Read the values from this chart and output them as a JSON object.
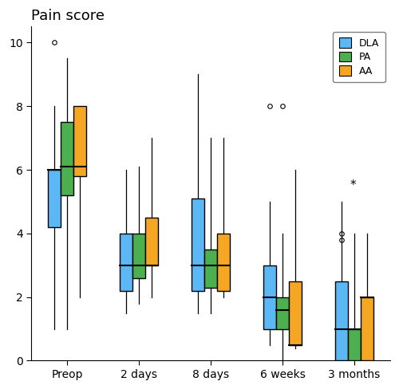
{
  "title": "Pain score",
  "ylim": [
    0,
    10.5
  ],
  "yticks": [
    0,
    2,
    4,
    6,
    8,
    10
  ],
  "groups": [
    "Preop",
    "2 days",
    "8 days",
    "6 weeks",
    "3 months"
  ],
  "series": [
    "DLA",
    "PA",
    "AA"
  ],
  "colors": {
    "DLA": "#5BB8F5",
    "PA": "#4CAF50",
    "AA": "#F5A623"
  },
  "box_width": 0.18,
  "box_data": {
    "Preop": {
      "DLA": {
        "whislo": 1.0,
        "q1": 4.2,
        "med": 6.0,
        "q3": 6.0,
        "whishi": 8.0,
        "fliers": [
          10.0
        ],
        "extreme": []
      },
      "PA": {
        "whislo": 1.0,
        "q1": 5.2,
        "med": 6.1,
        "q3": 7.5,
        "whishi": 9.5,
        "fliers": [],
        "extreme": []
      },
      "AA": {
        "whislo": 2.0,
        "q1": 5.8,
        "med": 6.1,
        "q3": 8.0,
        "whishi": 8.0,
        "fliers": [],
        "extreme": []
      }
    },
    "2 days": {
      "DLA": {
        "whislo": 1.5,
        "q1": 2.2,
        "med": 3.0,
        "q3": 4.0,
        "whishi": 6.0,
        "fliers": [],
        "extreme": []
      },
      "PA": {
        "whislo": 1.8,
        "q1": 2.6,
        "med": 3.0,
        "q3": 4.0,
        "whishi": 6.1,
        "fliers": [],
        "extreme": []
      },
      "AA": {
        "whislo": 2.0,
        "q1": 3.0,
        "med": 3.0,
        "q3": 4.5,
        "whishi": 7.0,
        "fliers": [],
        "extreme": []
      }
    },
    "8 days": {
      "DLA": {
        "whislo": 1.5,
        "q1": 2.2,
        "med": 3.0,
        "q3": 5.1,
        "whishi": 9.0,
        "fliers": [],
        "extreme": []
      },
      "PA": {
        "whislo": 1.5,
        "q1": 2.3,
        "med": 3.0,
        "q3": 3.5,
        "whishi": 7.0,
        "fliers": [],
        "extreme": []
      },
      "AA": {
        "whislo": 2.0,
        "q1": 2.2,
        "med": 3.0,
        "q3": 4.0,
        "whishi": 7.0,
        "fliers": [],
        "extreme": []
      }
    },
    "6 weeks": {
      "DLA": {
        "whislo": 0.5,
        "q1": 1.0,
        "med": 2.0,
        "q3": 3.0,
        "whishi": 5.0,
        "fliers": [
          8.0
        ],
        "extreme": []
      },
      "PA": {
        "whislo": 0.0,
        "q1": 1.0,
        "med": 1.6,
        "q3": 2.0,
        "whishi": 4.0,
        "fliers": [
          8.0
        ],
        "extreme": []
      },
      "AA": {
        "whislo": 0.4,
        "q1": 0.5,
        "med": 0.5,
        "q3": 2.5,
        "whishi": 6.0,
        "fliers": [],
        "extreme": []
      }
    },
    "3 months": {
      "DLA": {
        "whislo": 0.0,
        "q1": 0.0,
        "med": 1.0,
        "q3": 2.5,
        "whishi": 5.0,
        "fliers": [
          3.8,
          4.0
        ],
        "extreme": [
          5.5
        ]
      },
      "PA": {
        "whislo": 0.0,
        "q1": 0.0,
        "med": 1.0,
        "q3": 1.0,
        "whishi": 4.0,
        "fliers": [],
        "extreme": []
      },
      "AA": {
        "whislo": 0.0,
        "q1": 0.0,
        "med": 2.0,
        "q3": 2.0,
        "whishi": 4.0,
        "fliers": [],
        "extreme": []
      }
    }
  }
}
